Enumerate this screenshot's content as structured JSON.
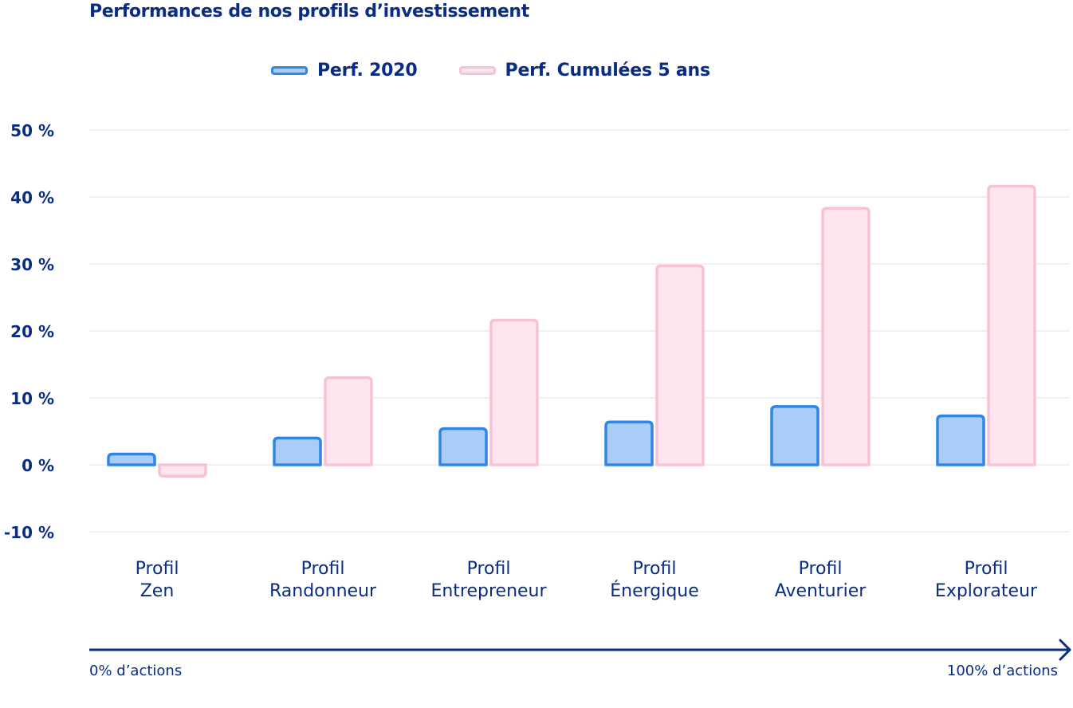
{
  "chart_data": {
    "type": "bar",
    "title": "Performances de nos profils d’investissement",
    "categories": [
      [
        "Profil",
        "Zen"
      ],
      [
        "Profil",
        "Randonneur"
      ],
      [
        "Profil",
        "Entrepreneur"
      ],
      [
        "Profil",
        "Énergique"
      ],
      [
        "Profil",
        "Aventurier"
      ],
      [
        "Profil",
        "Explorateur"
      ]
    ],
    "series": [
      {
        "name": "Perf. 2020",
        "values": [
          1.6,
          4.0,
          5.4,
          6.4,
          8.7,
          7.3
        ],
        "fill": "#aacdf7",
        "stroke": "#2f86e3"
      },
      {
        "name": "Perf. Cumulées 5 ans",
        "values": [
          -1.7,
          13.0,
          21.6,
          29.7,
          38.3,
          41.6
        ],
        "fill": "#fde6ef",
        "stroke": "#f7c2d6"
      }
    ],
    "yticks": [
      -10,
      0,
      10,
      20,
      30,
      40,
      50
    ],
    "ytick_labels": [
      "-10 %",
      "0 %",
      "10 %",
      "20 %",
      "30 %",
      "40 %",
      "50 %"
    ],
    "ylim": [
      -10,
      50
    ],
    "grid": true,
    "legend_position": "top",
    "xaxis_arrow": {
      "start_label": "0% d’actions",
      "end_label": "100% d’actions"
    },
    "colors": {
      "text": "#0a2d82",
      "grid": "#eef0f5",
      "arrow": "#0a2d82"
    }
  }
}
